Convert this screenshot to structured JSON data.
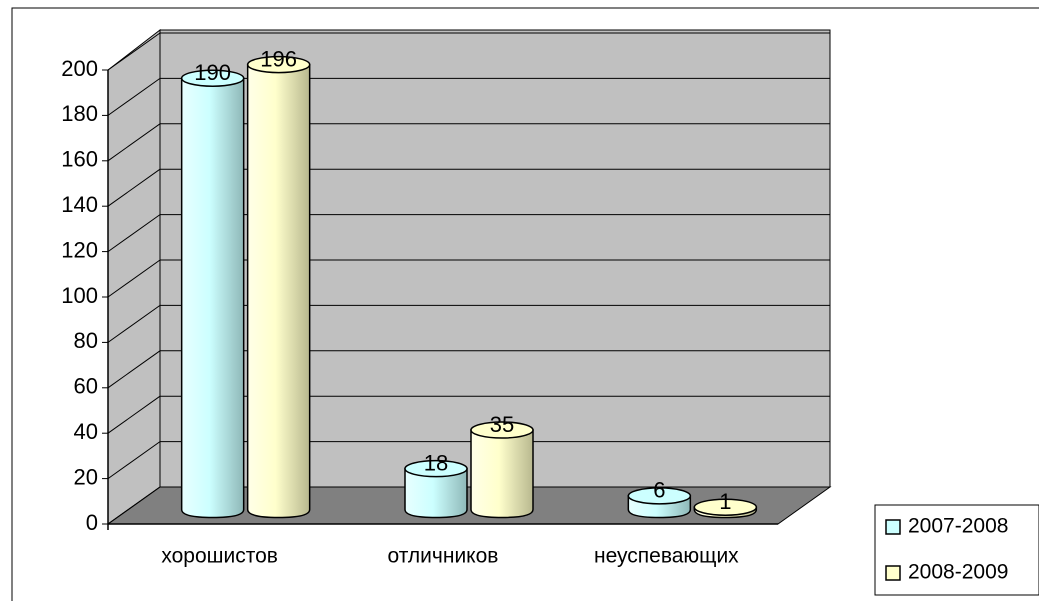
{
  "chart_data": {
    "type": "bar3d",
    "categories": [
      "хорошистов",
      "отличников",
      "неуспевающих"
    ],
    "series": [
      {
        "name": "2007-2008",
        "color": "#ccffff",
        "values": [
          190,
          18,
          6
        ]
      },
      {
        "name": "2008-2009",
        "color": "#ffffcc",
        "values": [
          196,
          35,
          1
        ]
      }
    ],
    "ylim": [
      0,
      200
    ],
    "yticks": [
      0,
      20,
      40,
      60,
      80,
      100,
      120,
      140,
      160,
      180,
      200
    ],
    "grid": true,
    "legend": "right"
  }
}
